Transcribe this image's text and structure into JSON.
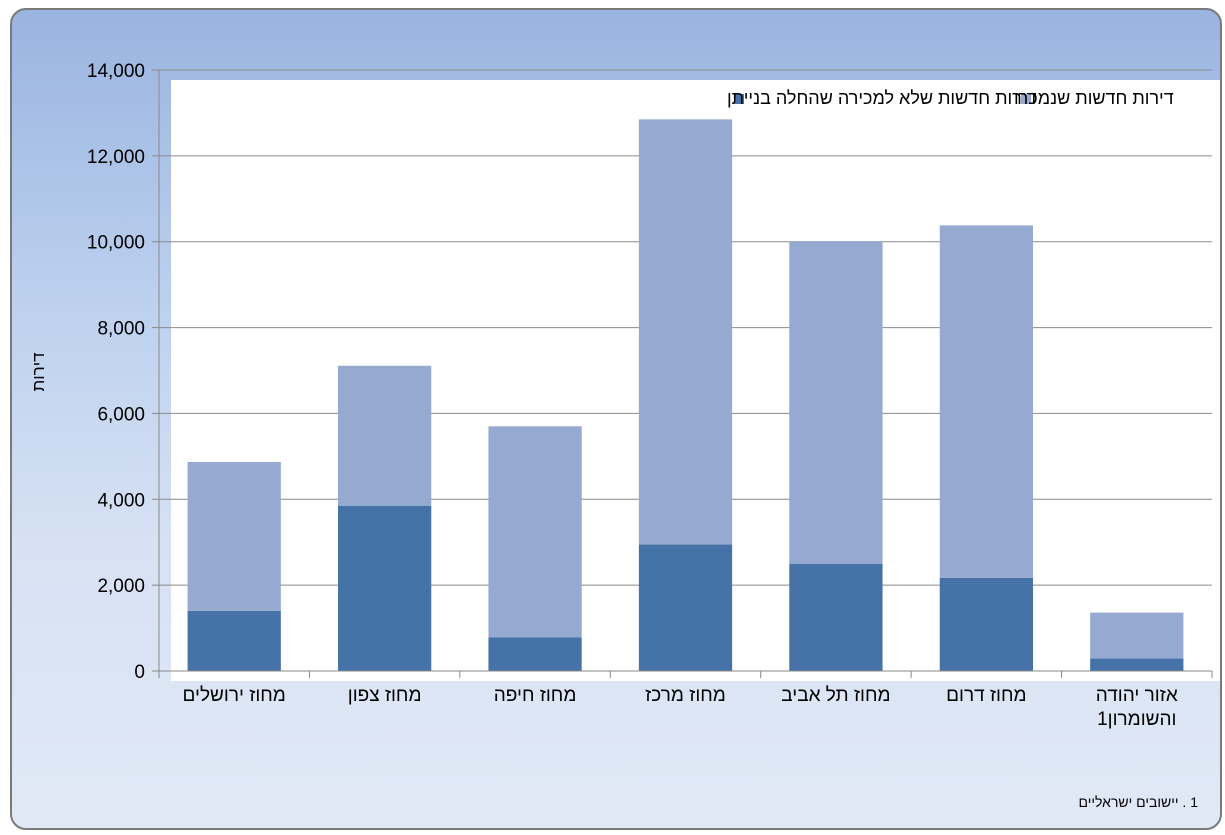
{
  "chart_data": {
    "type": "bar",
    "stacked": true,
    "title": "",
    "xlabel": "",
    "ylabel": "דירות",
    "ylim": [
      0,
      14000
    ],
    "yticks": [
      0,
      2000,
      4000,
      6000,
      8000,
      10000,
      12000,
      14000
    ],
    "ytick_labels": [
      "0",
      "2,000",
      "4,000",
      "6,000",
      "8,000",
      "10,000",
      "12,000",
      "14,000"
    ],
    "grid": true,
    "legend_position": "top",
    "categories": [
      [
        "מחוז ירושלים"
      ],
      [
        "מחוז צפון"
      ],
      [
        "מחוז חיפה"
      ],
      [
        "מחוז מרכז"
      ],
      [
        "מחוז תל אביב"
      ],
      [
        "מחוז דרום"
      ],
      [
        "אזור יהודה",
        "והשומרון1"
      ]
    ],
    "series": [
      {
        "name": "דירות חדשות שלא למכירה שהחלה בנייתן",
        "color": "#4673a7",
        "values": [
          1400,
          3850,
          780,
          2950,
          2500,
          2170,
          290
        ]
      },
      {
        "name": "דירות חדשות שנמכרו",
        "color": "#95a9d1",
        "values": [
          3470,
          3260,
          4920,
          9900,
          7510,
          8210,
          1070
        ]
      }
    ]
  },
  "footnote": "1 . יישובים ישראליים"
}
